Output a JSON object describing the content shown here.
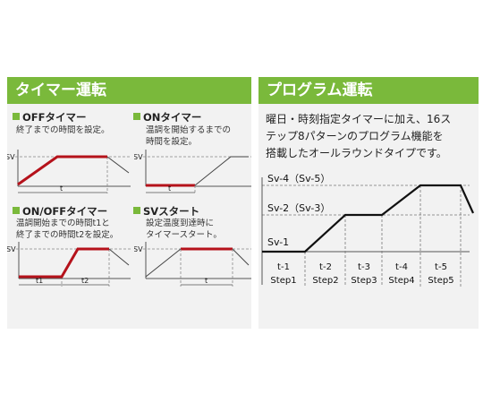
{
  "left": {
    "title": "タイマー運転",
    "items": [
      {
        "name": "OFFタイマー",
        "desc": [
          "終了までの時間を設定。"
        ],
        "sv": "SV",
        "t": [
          "t"
        ]
      },
      {
        "name": "ONタイマー",
        "desc": [
          "温調を開始するまでの",
          "時間を設定。"
        ],
        "sv": "SV",
        "t": [
          "t"
        ]
      },
      {
        "name": "ON/OFFタイマー",
        "desc": [
          "温調開始までの時間t1と",
          "終了までの時間t2を設定。"
        ],
        "sv": "SV",
        "t": [
          "t1",
          "t2"
        ]
      },
      {
        "name": "SVスタート",
        "desc": [
          "設定温度到達時に",
          "タイマースタート。"
        ],
        "sv": "SV",
        "t": [
          "t"
        ]
      }
    ]
  },
  "right": {
    "title": "プログラム運転",
    "desc": [
      "曜日・時刻指定タイマーに加え、16ス",
      "テップ8パターンのプログラム機能を",
      "搭載したオールラウンドタイプです。"
    ],
    "levels": [
      "Sv-4（Sv-5）",
      "Sv-2（Sv-3）",
      "Sv-1"
    ],
    "times": [
      "t-1",
      "t-2",
      "t-3",
      "t-4",
      "t-5"
    ],
    "steps": [
      "Step1",
      "Step2",
      "Step3",
      "Step4",
      "Step5"
    ]
  },
  "colors": {
    "accent": "#7ab93b",
    "timer_line": "#b5121b"
  }
}
